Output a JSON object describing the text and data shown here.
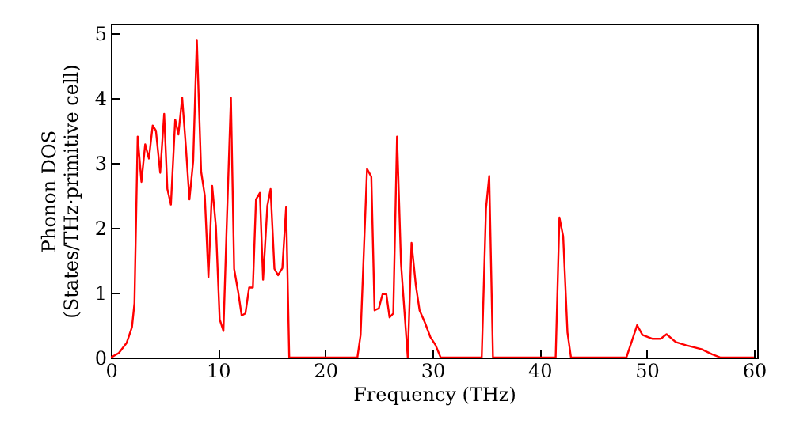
{
  "chart_data": {
    "type": "line",
    "xlabel": "Frequency (THz)",
    "ylabel": "Phonon DOS\n(States/THz·primitive cell)",
    "xlim": [
      0,
      60.3
    ],
    "ylim": [
      0,
      5.15
    ],
    "xticks": [
      0,
      10,
      20,
      30,
      40,
      50,
      60
    ],
    "yticks": [
      0,
      1,
      2,
      3,
      4,
      5
    ],
    "grid": false,
    "series": [
      {
        "color": "#ff0000",
        "x": [
          0,
          0.74,
          1.48,
          1.97,
          2.2,
          2.5,
          2.85,
          3.2,
          3.55,
          3.9,
          4.2,
          4.6,
          4.97,
          5.27,
          5.6,
          6.0,
          6.3,
          6.65,
          7.0,
          7.33,
          7.68,
          8.02,
          8.42,
          8.76,
          9.1,
          9.45,
          9.8,
          10.15,
          10.5,
          10.83,
          11.2,
          11.5,
          11.87,
          12.2,
          12.55,
          12.9,
          13.25,
          13.54,
          13.9,
          14.2,
          14.6,
          14.9,
          15.26,
          15.6,
          16.0,
          16.35,
          16.64,
          23.0,
          23.3,
          23.9,
          24.3,
          24.6,
          25.0,
          25.35,
          25.7,
          26.0,
          26.35,
          26.7,
          27.07,
          27.7,
          28.05,
          28.45,
          28.8,
          29.3,
          29.8,
          30.3,
          30.77,
          34.6,
          35.0,
          35.3,
          35.65,
          41.5,
          41.85,
          42.2,
          42.6,
          42.93,
          48.1,
          49.1,
          49.6,
          50.5,
          51.3,
          51.85,
          52.7,
          53.65,
          55.1,
          56.1,
          56.9,
          60
        ],
        "values": [
          0,
          0.07,
          0.23,
          0.47,
          0.84,
          3.41,
          2.71,
          3.29,
          3.07,
          3.58,
          3.5,
          2.85,
          3.76,
          2.6,
          2.36,
          3.67,
          3.44,
          4.01,
          3.24,
          2.44,
          3.03,
          4.9,
          2.87,
          2.5,
          1.24,
          2.65,
          2.02,
          0.59,
          0.41,
          2.15,
          4.01,
          1.37,
          1.02,
          0.65,
          0.68,
          1.08,
          1.08,
          2.44,
          2.54,
          1.2,
          2.34,
          2.6,
          1.37,
          1.27,
          1.38,
          2.32,
          0,
          0,
          0.35,
          2.91,
          2.79,
          0.73,
          0.76,
          0.98,
          0.98,
          0.62,
          0.68,
          3.41,
          1.45,
          0,
          1.77,
          1.12,
          0.73,
          0.54,
          0.32,
          0.19,
          0,
          0,
          2.3,
          2.8,
          0,
          0,
          2.16,
          1.87,
          0.39,
          0,
          0,
          0.5,
          0.35,
          0.29,
          0.29,
          0.36,
          0.24,
          0.19,
          0.13,
          0.05,
          0,
          0
        ]
      }
    ]
  }
}
